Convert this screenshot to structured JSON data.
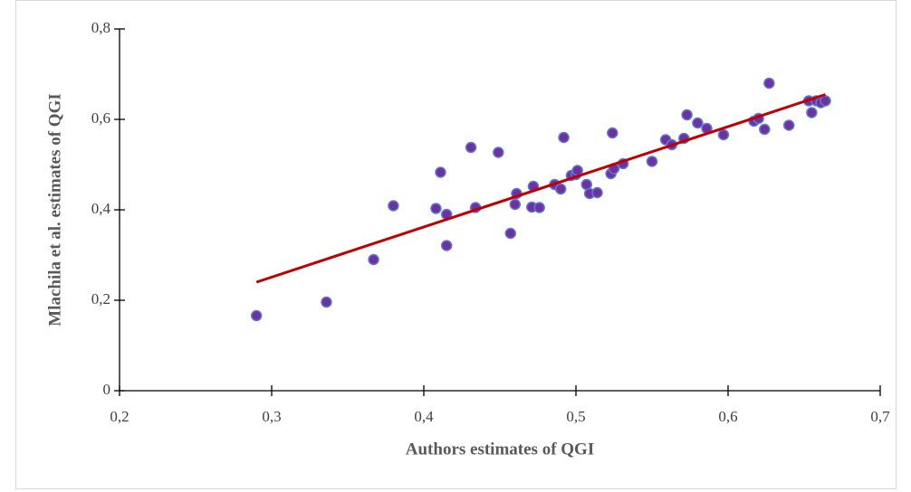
{
  "chart_data": {
    "type": "scatter",
    "x_label": "Authors estimates of QGI",
    "y_label": "Mlachila et  al. estimates of QGI",
    "xlim": [
      0.2,
      0.7
    ],
    "ylim": [
      0,
      0.8
    ],
    "xticks": [
      {
        "value": 0.2,
        "label": "0,2"
      },
      {
        "value": 0.3,
        "label": "0,3"
      },
      {
        "value": 0.4,
        "label": "0,4"
      },
      {
        "value": 0.5,
        "label": "0,5"
      },
      {
        "value": 0.6,
        "label": "0,6"
      },
      {
        "value": 0.7,
        "label": "0,7"
      }
    ],
    "yticks": [
      0,
      {
        "value": 0.2,
        "label": "0,2"
      },
      {
        "value": 0.4,
        "label": "0,4"
      },
      {
        "value": 0.6,
        "label": "0,6"
      },
      {
        "value": 0.8,
        "label": "0,8"
      }
    ],
    "color": "#7030a0",
    "edge_color": "#5b7bd5",
    "x": [
      0.29,
      0.336,
      0.367,
      0.38,
      0.408,
      0.411,
      0.415,
      0.415,
      0.431,
      0.434,
      0.449,
      0.457,
      0.46,
      0.461,
      0.471,
      0.472,
      0.476,
      0.486,
      0.49,
      0.492,
      0.497,
      0.5,
      0.501,
      0.507,
      0.509,
      0.514,
      0.523,
      0.524,
      0.525,
      0.531,
      0.55,
      0.559,
      0.563,
      0.571,
      0.573,
      0.58,
      0.586,
      0.597,
      0.617,
      0.62,
      0.624,
      0.627,
      0.64,
      0.653,
      0.655,
      0.658,
      0.661,
      0.664
    ],
    "values": [
      0.166,
      0.196,
      0.29,
      0.409,
      0.403,
      0.483,
      0.321,
      0.39,
      0.538,
      0.405,
      0.527,
      0.348,
      0.412,
      0.436,
      0.406,
      0.452,
      0.405,
      0.456,
      0.446,
      0.56,
      0.476,
      0.478,
      0.487,
      0.456,
      0.436,
      0.438,
      0.48,
      0.57,
      0.491,
      0.502,
      0.507,
      0.555,
      0.544,
      0.558,
      0.61,
      0.592,
      0.58,
      0.566,
      0.596,
      0.602,
      0.578,
      0.68,
      0.587,
      0.641,
      0.615,
      0.641,
      0.637,
      0.641
    ],
    "trendline": {
      "x": [
        0.29,
        0.664
      ],
      "y": [
        0.24,
        0.655
      ],
      "color": "#c00000"
    }
  }
}
